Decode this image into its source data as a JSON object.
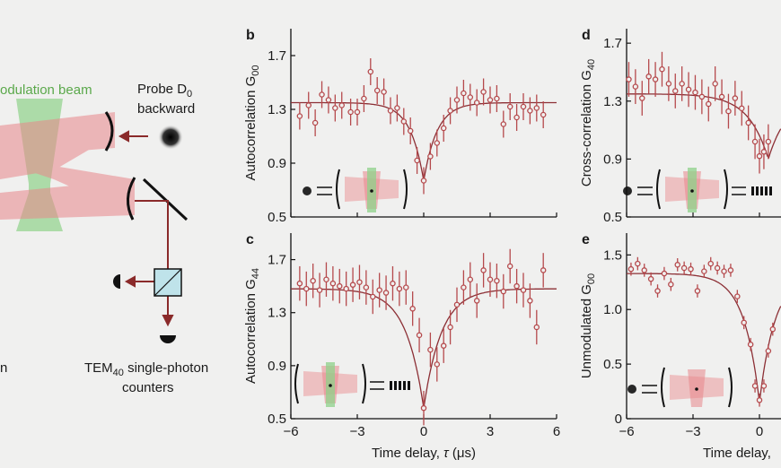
{
  "schematic": {
    "modulation_label": "odulation beam",
    "probe_label_line1": "Probe D",
    "probe_label_sub": "0",
    "probe_label_line2": "backward",
    "left_fragment": "n",
    "counters_line1_pre": "TEM",
    "counters_line1_sub": "40",
    "counters_line1_post": " single-photon",
    "counters_line2": "counters"
  },
  "axis_x_label_pre": "Time delay, ",
  "axis_x_label_var": "τ",
  "axis_x_label_unit": " (μs)",
  "axis_x_label_truncated": "Time delay, ",
  "x_ticks": [
    "−6",
    "−3",
    "0",
    "3",
    "6"
  ],
  "panels": {
    "b": {
      "letter": "b",
      "ylabel_pre": "Autocorrelation G",
      "ylabel_sub": "00",
      "yticks": [
        "0.5",
        "0.9",
        "1.3",
        "1.7"
      ]
    },
    "c": {
      "letter": "c",
      "ylabel_pre": "Autocorrelation G",
      "ylabel_sub": "44",
      "yticks": [
        "0.5",
        "0.9",
        "1.3",
        "1.7"
      ]
    },
    "d": {
      "letter": "d",
      "ylabel_pre": "Cross-correlation G",
      "ylabel_sub": "40",
      "yticks": [
        "0.5",
        "0.9",
        "1.3",
        "1.7"
      ]
    },
    "e": {
      "letter": "e",
      "ylabel_pre": "Unmodulated G",
      "ylabel_sub": "00",
      "yticks": [
        "0",
        "0.5",
        "1.0",
        "1.5"
      ]
    }
  },
  "colors": {
    "data": "#b5494c",
    "fit": "#8c2f35",
    "beam_red": "#e8868a",
    "beam_green": "#8fd18a",
    "arrow": "#8a2a2a"
  },
  "chart_data": [
    {
      "panel": "b",
      "type": "scatter",
      "title": "",
      "xlabel": "Time delay, τ (μs)",
      "ylabel": "Autocorrelation G00",
      "xlim": [
        -6,
        6
      ],
      "ylim": [
        0.5,
        1.9
      ],
      "x": [
        -5.6,
        -5.2,
        -4.9,
        -4.6,
        -4.3,
        -4.0,
        -3.7,
        -3.3,
        -3.0,
        -2.7,
        -2.4,
        -2.1,
        -1.8,
        -1.5,
        -1.2,
        -0.9,
        -0.6,
        -0.3,
        0.0,
        0.3,
        0.6,
        0.9,
        1.2,
        1.5,
        1.8,
        2.1,
        2.4,
        2.7,
        3.0,
        3.3,
        3.6,
        3.9,
        4.2,
        4.5,
        4.8,
        5.1,
        5.4
      ],
      "y": [
        1.25,
        1.33,
        1.2,
        1.41,
        1.37,
        1.31,
        1.33,
        1.28,
        1.28,
        1.38,
        1.58,
        1.44,
        1.43,
        1.29,
        1.31,
        1.21,
        1.14,
        0.92,
        0.77,
        0.95,
        1.05,
        1.16,
        1.29,
        1.37,
        1.42,
        1.39,
        1.35,
        1.43,
        1.37,
        1.38,
        1.19,
        1.32,
        1.24,
        1.32,
        1.29,
        1.31,
        1.26
      ],
      "yerr": 0.1,
      "fit": {
        "type": "dip",
        "baseline": 1.35,
        "min": 0.77,
        "center": 0,
        "width": 0.6
      }
    },
    {
      "panel": "c",
      "type": "scatter",
      "title": "",
      "xlabel": "Time delay, τ (μs)",
      "ylabel": "Autocorrelation G44",
      "xlim": [
        -6,
        6
      ],
      "ylim": [
        0.5,
        1.9
      ],
      "x": [
        -5.6,
        -5.3,
        -5.0,
        -4.7,
        -4.4,
        -4.1,
        -3.8,
        -3.5,
        -3.2,
        -2.9,
        -2.6,
        -2.3,
        -2.0,
        -1.7,
        -1.4,
        -1.1,
        -0.8,
        -0.5,
        -0.2,
        0.0,
        0.3,
        0.6,
        0.9,
        1.2,
        1.5,
        1.8,
        2.1,
        2.4,
        2.7,
        3.0,
        3.3,
        3.6,
        3.9,
        4.2,
        4.5,
        4.8,
        5.1,
        5.4
      ],
      "y": [
        1.52,
        1.48,
        1.54,
        1.47,
        1.55,
        1.52,
        1.5,
        1.48,
        1.51,
        1.53,
        1.49,
        1.42,
        1.47,
        1.45,
        1.52,
        1.48,
        1.49,
        1.33,
        1.13,
        0.58,
        1.02,
        0.91,
        1.05,
        1.19,
        1.36,
        1.49,
        1.55,
        1.39,
        1.62,
        1.55,
        1.54,
        1.46,
        1.65,
        1.5,
        1.47,
        1.39,
        1.19,
        1.62
      ],
      "yerr": 0.13,
      "fit": {
        "type": "dip",
        "baseline": 1.48,
        "min": 0.58,
        "center": 0,
        "width": 0.8
      }
    },
    {
      "panel": "d",
      "type": "scatter",
      "title": "",
      "xlabel": "Time delay, τ (μs)",
      "ylabel": "Cross-correlation G40",
      "xlim": [
        -6,
        6
      ],
      "ylim": [
        0.5,
        1.8
      ],
      "x": [
        -5.9,
        -5.6,
        -5.3,
        -5.0,
        -4.7,
        -4.4,
        -4.1,
        -3.8,
        -3.5,
        -3.2,
        -2.9,
        -2.6,
        -2.3,
        -2.0,
        -1.7,
        -1.4,
        -1.1,
        -0.8,
        -0.5,
        -0.2,
        0.0,
        0.2,
        0.4
      ],
      "y": [
        1.45,
        1.4,
        1.32,
        1.47,
        1.45,
        1.52,
        1.42,
        1.37,
        1.42,
        1.38,
        1.36,
        1.33,
        1.28,
        1.42,
        1.33,
        1.23,
        1.32,
        1.25,
        1.15,
        1.02,
        0.92,
        0.95,
        1.02
      ],
      "yerr": 0.12,
      "fit": {
        "type": "dip",
        "baseline": 1.35,
        "min": 0.9,
        "center": 0.4,
        "width": 0.9
      }
    },
    {
      "panel": "e",
      "type": "scatter",
      "title": "",
      "xlabel": "Time delay, τ (μs)",
      "ylabel": "Unmodulated G00",
      "xlim": [
        -6,
        6
      ],
      "ylim": [
        0,
        1.7
      ],
      "x": [
        -5.8,
        -5.5,
        -5.2,
        -4.9,
        -4.6,
        -4.3,
        -4.0,
        -3.7,
        -3.4,
        -3.1,
        -2.8,
        -2.5,
        -2.2,
        -1.9,
        -1.6,
        -1.3,
        -1.0,
        -0.7,
        -0.4,
        -0.2,
        0.0,
        0.2,
        0.4,
        0.6
      ],
      "y": [
        1.37,
        1.42,
        1.36,
        1.28,
        1.17,
        1.33,
        1.23,
        1.41,
        1.38,
        1.37,
        1.17,
        1.35,
        1.42,
        1.38,
        1.35,
        1.36,
        1.12,
        0.88,
        0.68,
        0.3,
        0.17,
        0.3,
        0.62,
        0.82
      ],
      "yerr": 0.06,
      "fit": {
        "type": "dip",
        "baseline": 1.33,
        "min": 0.15,
        "center": 0,
        "width": 0.7
      }
    }
  ]
}
